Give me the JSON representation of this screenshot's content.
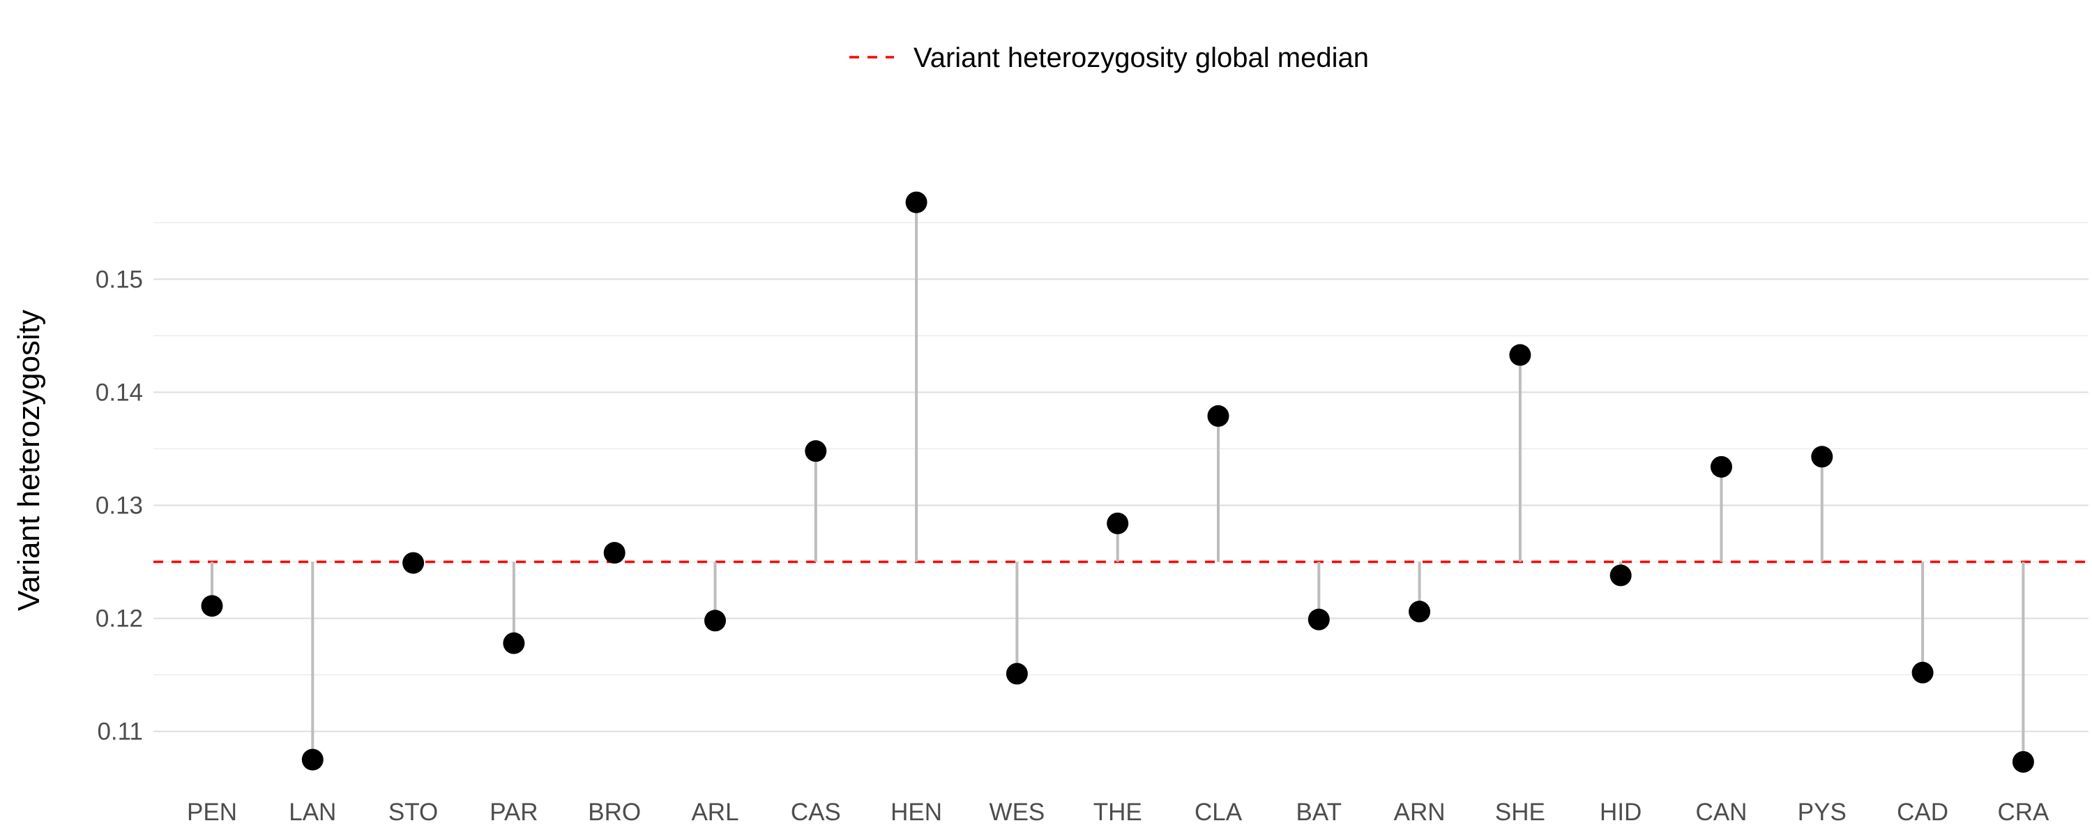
{
  "chart_data": {
    "type": "scatter",
    "subtype": "lollipop",
    "title": "",
    "xlabel": "",
    "ylabel": "Variant heterozygosity",
    "categories": [
      "PEN",
      "LAN",
      "STO",
      "PAR",
      "BRO",
      "ARL",
      "CAS",
      "HEN",
      "WES",
      "THE",
      "CLA",
      "BAT",
      "ARN",
      "SHE",
      "HID",
      "CAN",
      "PYS",
      "CAD",
      "CRA"
    ],
    "values": [
      0.1211,
      0.1075,
      0.1249,
      0.1178,
      0.1258,
      0.1198,
      0.1348,
      0.1568,
      0.1151,
      0.1284,
      0.1379,
      0.1199,
      0.1206,
      0.1433,
      0.1238,
      0.1334,
      0.1343,
      0.1152,
      0.1073
    ],
    "baseline": 0.125,
    "ylim": [
      0.1051,
      0.1602
    ],
    "yticks": [
      0.11,
      0.12,
      0.13,
      0.14,
      0.15
    ],
    "ytick_labels": [
      "0.11",
      "0.12",
      "0.13",
      "0.14",
      "0.15"
    ],
    "grid": true,
    "legend": {
      "position": "top",
      "entries": [
        {
          "label": "Variant heterozygosity global median",
          "style": "dashed-line",
          "color": "#ff0000"
        }
      ]
    },
    "colors": {
      "point": "#000000",
      "stem": "#bdbdbd",
      "median": "#ff0000",
      "grid": "#dedede"
    }
  }
}
